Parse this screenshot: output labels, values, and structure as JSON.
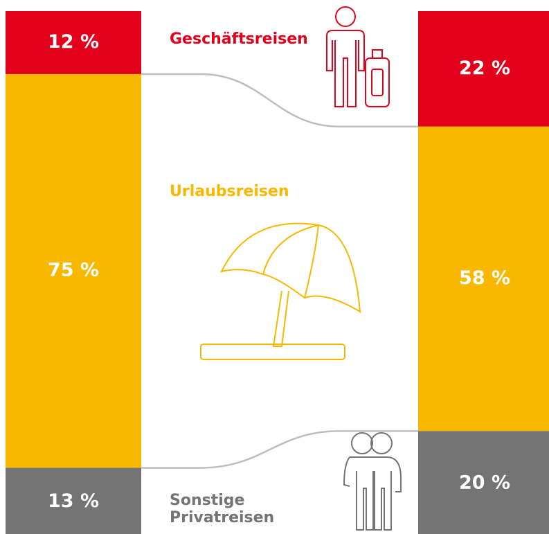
{
  "chart_data": {
    "type": "stacked_column_100",
    "categories": [
      null,
      null
    ],
    "ylim": [
      0,
      100
    ],
    "series": [
      {
        "name": "Geschäftsreisen",
        "color": "#e2001a",
        "values": [
          12,
          22
        ],
        "value_labels": [
          "12 %",
          "22 %"
        ]
      },
      {
        "name": "Urlaubsreisen",
        "color": "#f8b800",
        "values": [
          75,
          58
        ],
        "value_labels": [
          "75 %",
          "58 %"
        ]
      },
      {
        "name": "Sonstige Privatreisen",
        "color": "#747474",
        "values": [
          13,
          20
        ],
        "value_labels": [
          "13 %",
          "20 %"
        ]
      }
    ]
  }
}
